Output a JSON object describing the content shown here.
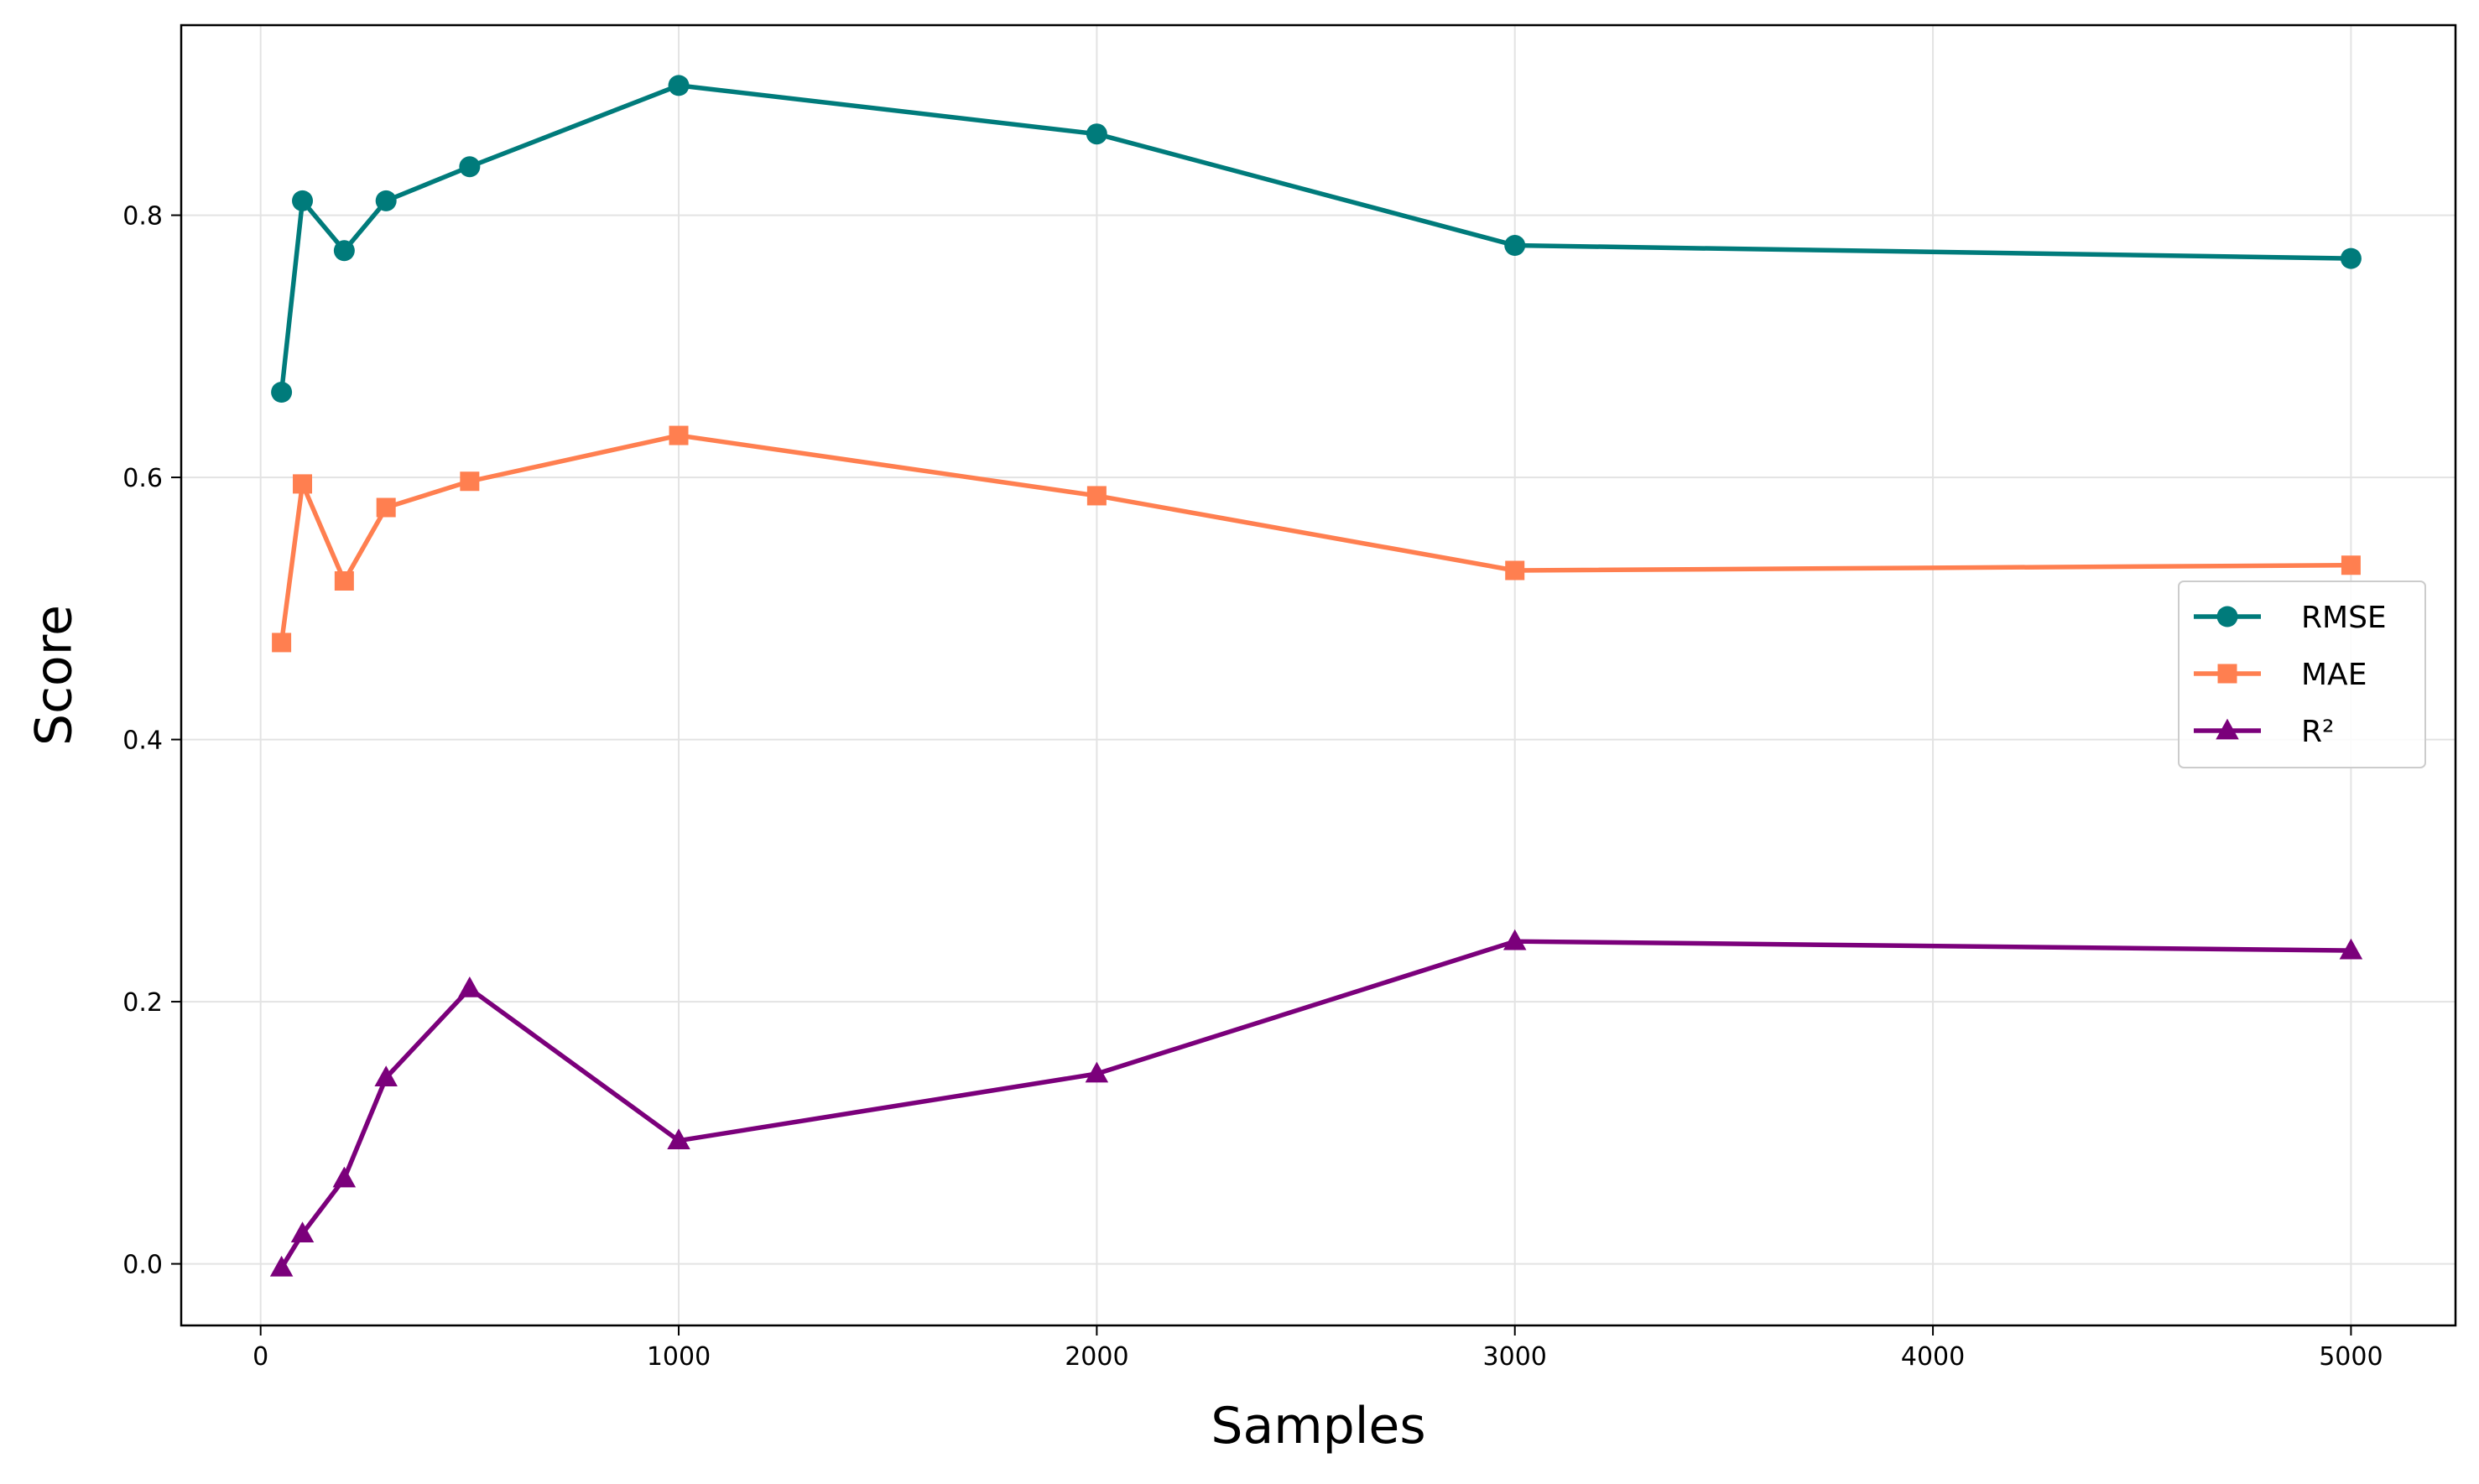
{
  "chart_data": {
    "type": "line",
    "title": "",
    "xlabel": "Samples",
    "ylabel": "Score",
    "xlim": [
      -190,
      5250
    ],
    "ylim": [
      -0.047,
      0.945
    ],
    "xticks": [
      0,
      1000,
      2000,
      3000,
      4000,
      5000
    ],
    "xtick_labels": [
      "0",
      "1000",
      "2000",
      "3000",
      "4000",
      "5000"
    ],
    "yticks": [
      0.0,
      0.2,
      0.4,
      0.6,
      0.8
    ],
    "ytick_labels": [
      "0.0",
      "0.2",
      "0.4",
      "0.6",
      "0.8"
    ],
    "grid": true,
    "legend_position": "center-right",
    "x": [
      50,
      100,
      200,
      300,
      500,
      1000,
      2000,
      3000,
      5000
    ],
    "series": [
      {
        "name": "RMSE",
        "color": "#007b7b",
        "marker": "circle",
        "values": [
          0.665,
          0.811,
          0.773,
          0.811,
          0.837,
          0.899,
          0.862,
          0.777,
          0.767
        ]
      },
      {
        "name": "MAE",
        "color": "#ff7f50",
        "marker": "square",
        "values": [
          0.474,
          0.595,
          0.521,
          0.577,
          0.597,
          0.632,
          0.586,
          0.529,
          0.533
        ]
      },
      {
        "name": "R²",
        "color": "#7b007b",
        "marker": "triangle",
        "values": [
          -0.003,
          0.023,
          0.065,
          0.142,
          0.21,
          0.094,
          0.145,
          0.246,
          0.239
        ]
      }
    ]
  }
}
